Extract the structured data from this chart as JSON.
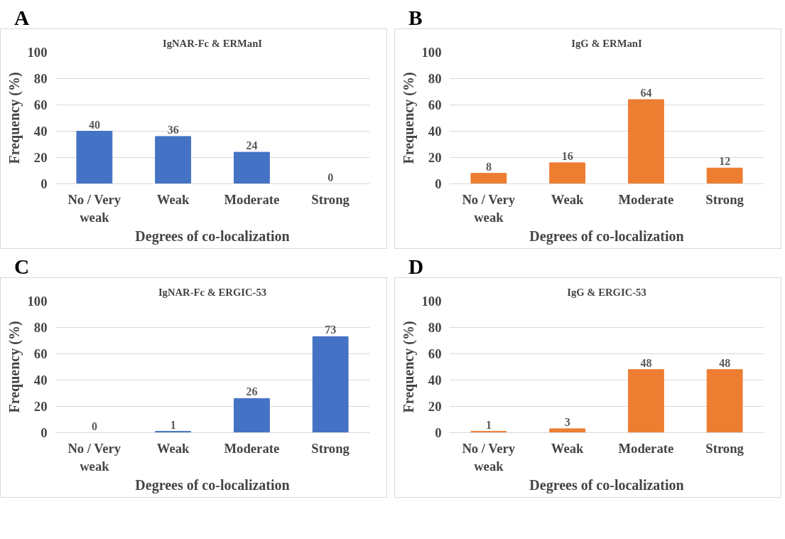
{
  "chart_data": [
    {
      "type": "bar",
      "annotations": [
        "A"
      ],
      "title": "IgNAR-Fc & ERManI",
      "xlabel": "Degrees of co-localization",
      "ylabel": "Frequency (%)",
      "categories": [
        "No / Very weak",
        "Weak",
        "Moderate",
        "Strong"
      ],
      "values": [
        40,
        36,
        24,
        0
      ],
      "color": "#4472c4",
      "ylim": [
        0,
        100
      ],
      "yticks": [
        0,
        20,
        40,
        60,
        80,
        100
      ],
      "grid": "y",
      "data_labels": true
    },
    {
      "type": "bar",
      "annotations": [
        "B"
      ],
      "title": "IgG & ERManI",
      "xlabel": "Degrees of co-localization",
      "ylabel": "Frequency (%)",
      "categories": [
        "No / Very weak",
        "Weak",
        "Moderate",
        "Strong"
      ],
      "values": [
        8,
        16,
        64,
        12
      ],
      "color": "#ed7d31",
      "ylim": [
        0,
        100
      ],
      "yticks": [
        0,
        20,
        40,
        60,
        80,
        100
      ],
      "grid": "y",
      "data_labels": true
    },
    {
      "type": "bar",
      "annotations": [
        "C"
      ],
      "title": "IgNAR-Fc & ERGIC-53",
      "xlabel": "Degrees of co-localization",
      "ylabel": "Frequency (%)",
      "categories": [
        "No / Very weak",
        "Weak",
        "Moderate",
        "Strong"
      ],
      "values": [
        0,
        1,
        26,
        73
      ],
      "color": "#4472c4",
      "ylim": [
        0,
        100
      ],
      "yticks": [
        0,
        20,
        40,
        60,
        80,
        100
      ],
      "grid": "y",
      "data_labels": true
    },
    {
      "type": "bar",
      "annotations": [
        "D"
      ],
      "title": "IgG & ERGIC-53",
      "xlabel": "Degrees of co-localization",
      "ylabel": "Frequency (%)",
      "categories": [
        "No / Very weak",
        "Weak",
        "Moderate",
        "Strong"
      ],
      "values": [
        1,
        3,
        48,
        48
      ],
      "color": "#ed7d31",
      "ylim": [
        0,
        100
      ],
      "yticks": [
        0,
        20,
        40,
        60,
        80,
        100
      ],
      "grid": "y",
      "data_labels": true
    }
  ]
}
